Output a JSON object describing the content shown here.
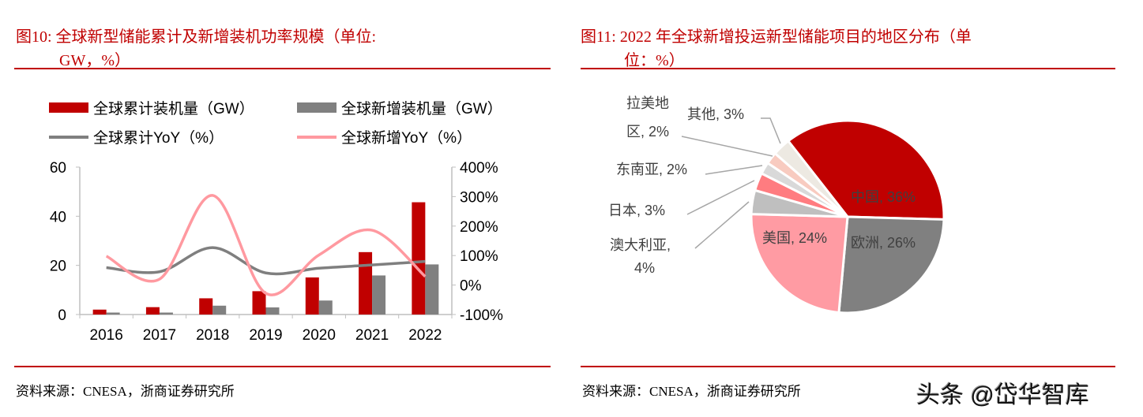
{
  "left": {
    "title_line1": "图10:   全球新型储能累计及新增装机功率规模（单位:",
    "title_line2": "GW，%）",
    "source": "资料来源：CNESA，浙商证券研究所"
  },
  "right": {
    "title_line1": "图11:   2022 年全球新增投运新型储能项目的地区分布（单",
    "title_line2": "位：%）",
    "source": "资料来源：CNESA，浙商证券研究所"
  },
  "watermark": "头条 @岱华智库",
  "chart_data": [
    {
      "type": "bar",
      "title": "全球新型储能累计及新增装机功率规模（单位: GW，%）",
      "categories": [
        "2016",
        "2017",
        "2018",
        "2019",
        "2020",
        "2021",
        "2022"
      ],
      "series": [
        {
          "name": "全球累计装机量（GW）",
          "kind": "bar",
          "axis": "left",
          "color": "#c00000",
          "values": [
            2.0,
            3.0,
            6.6,
            9.5,
            15.1,
            25.4,
            45.7
          ]
        },
        {
          "name": "全球新增装机量（GW）",
          "kind": "bar",
          "axis": "left",
          "color": "#808080",
          "values": [
            0.8,
            0.8,
            3.6,
            2.9,
            5.7,
            15.9,
            20.4
          ]
        },
        {
          "name": "全球累计YoY（%）",
          "kind": "line",
          "axis": "right",
          "color": "#7f7f7f",
          "values": [
            59,
            45,
            127,
            41,
            57,
            68,
            80
          ]
        },
        {
          "name": "全球新增YoY（%）",
          "kind": "line",
          "axis": "right",
          "color": "#ff99a0",
          "values": [
            98,
            20,
            304,
            -28,
            102,
            186,
            29
          ]
        }
      ],
      "ylim": [
        0,
        60
      ],
      "yticks": [
        "0",
        "20",
        "40",
        "60"
      ],
      "y2lim": [
        -100,
        400
      ],
      "y2ticks": [
        "-100%",
        "0%",
        "100%",
        "200%",
        "300%",
        "400%"
      ],
      "legend": "top"
    },
    {
      "type": "pie",
      "title": "2022 年全球新增投运新型储能项目的地区分布（单位：%）",
      "slices": [
        {
          "label": "中国, 36%",
          "value": 36,
          "color": "#c00000"
        },
        {
          "label": "欧洲, 26%",
          "value": 26,
          "color": "#808080"
        },
        {
          "label": "美国, 24%",
          "value": 24,
          "color": "#ff9ba3"
        },
        {
          "label": "澳大利亚, 4%",
          "value": 4,
          "color": "#bfbfbf"
        },
        {
          "label": "日本, 3%",
          "value": 3,
          "color": "#ff7c80"
        },
        {
          "label": "东南亚, 2%",
          "value": 2,
          "color": "#d9d9d9"
        },
        {
          "label": "拉美地区, 2%",
          "value": 2,
          "color": "#f8cbc0"
        },
        {
          "label": "其他, 3%",
          "value": 3,
          "color": "#ede9e2"
        }
      ],
      "display_labels": {
        "china": "中国, 36%",
        "europe": "欧洲, 26%",
        "usa": "美国, 24%",
        "australia_1": "澳大利亚,",
        "australia_2": "4%",
        "japan": "日本, 3%",
        "sea": "东南亚, 2%",
        "latam_1": "拉美地",
        "latam_2": "区, 2%",
        "other": "其他, 3%"
      }
    }
  ]
}
